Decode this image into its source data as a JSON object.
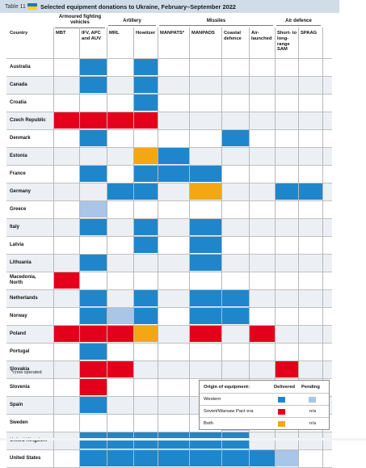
{
  "table_label": "Table 11",
  "title": "Selected equipment donations to Ukraine, February–September 2022",
  "colors": {
    "western": "#1f86cc",
    "western_pending": "#a9c5e8",
    "soviet": "#e3001b",
    "both": "#f3a712"
  },
  "groups": {
    "armoured": "Armoured fighting vehicles",
    "artillery": "Artillery",
    "missiles": "Missiles",
    "air_defence": "Air defence"
  },
  "columns": [
    "MBT",
    "IFV, APC and AUV",
    "MRL",
    "Howitzer",
    "MANPATS*",
    "MANPADS",
    "Coastal defence",
    "Air-launched",
    "Short- to long-range SAM",
    "SPAAG"
  ],
  "country_header": "Country",
  "rows": [
    {
      "country": "Australia",
      "cells": [
        "",
        "W",
        "",
        "W",
        "",
        "",
        "",
        "",
        "",
        ""
      ]
    },
    {
      "country": "Canada",
      "cells": [
        "",
        "W",
        "",
        "W",
        "",
        "",
        "",
        "",
        "",
        ""
      ]
    },
    {
      "country": "Croatia",
      "cells": [
        "",
        "",
        "",
        "W",
        "",
        "",
        "",
        "",
        "",
        ""
      ]
    },
    {
      "country": "Czech Republic",
      "cells": [
        "S",
        "S",
        "S",
        "S",
        "",
        "",
        "",
        "",
        "",
        ""
      ]
    },
    {
      "country": "Denmark",
      "cells": [
        "",
        "W",
        "",
        "",
        "",
        "",
        "W",
        "",
        "",
        ""
      ]
    },
    {
      "country": "Estonia",
      "cells": [
        "",
        "",
        "",
        "B",
        "W",
        "",
        "",
        "",
        "",
        ""
      ]
    },
    {
      "country": "France",
      "cells": [
        "",
        "W",
        "",
        "W",
        "W",
        "W",
        "",
        "",
        "",
        ""
      ]
    },
    {
      "country": "Germany",
      "cells": [
        "",
        "",
        "W",
        "W",
        "",
        "B",
        "",
        "",
        "W",
        "W"
      ]
    },
    {
      "country": "Greece",
      "cells": [
        "",
        "WP",
        "",
        "",
        "",
        "",
        "",
        "",
        "",
        ""
      ]
    },
    {
      "country": "Italy",
      "cells": [
        "",
        "W",
        "",
        "W",
        "",
        "W",
        "",
        "",
        "",
        ""
      ]
    },
    {
      "country": "Latvia",
      "cells": [
        "",
        "",
        "",
        "W",
        "",
        "W",
        "",
        "",
        "",
        ""
      ]
    },
    {
      "country": "Lithuania",
      "cells": [
        "",
        "W",
        "",
        "",
        "",
        "W",
        "",
        "",
        "",
        ""
      ]
    },
    {
      "country": "Macedonia, North",
      "cells": [
        "S",
        "",
        "",
        "",
        "",
        "",
        "",
        "",
        "",
        ""
      ]
    },
    {
      "country": "Netherlands",
      "cells": [
        "",
        "W",
        "",
        "W",
        "",
        "W",
        "W",
        "",
        "",
        ""
      ]
    },
    {
      "country": "Norway",
      "cells": [
        "",
        "W",
        "WP",
        "W",
        "",
        "W",
        "W",
        "",
        "",
        ""
      ]
    },
    {
      "country": "Poland",
      "cells": [
        "S",
        "S",
        "S",
        "B",
        "",
        "S",
        "",
        "S",
        "",
        ""
      ]
    },
    {
      "country": "Portugal",
      "cells": [
        "",
        "W",
        "",
        "",
        "",
        "",
        "",
        "",
        "",
        ""
      ]
    },
    {
      "country": "Slovakia",
      "cells": [
        "",
        "S",
        "S",
        "",
        "",
        "",
        "",
        "",
        "S",
        ""
      ]
    },
    {
      "country": "Slovenia",
      "cells": [
        "",
        "S",
        "",
        "",
        "",
        "",
        "",
        "",
        "",
        ""
      ]
    },
    {
      "country": "Spain",
      "cells": [
        "",
        "W",
        "",
        "",
        "",
        "",
        "",
        "",
        "",
        ""
      ]
    },
    {
      "country": "Sweden",
      "cells": [
        "",
        "",
        "",
        "",
        "",
        "",
        "WP",
        "",
        "",
        ""
      ]
    },
    {
      "country": "United Kingdom",
      "cells": [
        "",
        "W",
        "W",
        "W",
        "W",
        "W",
        "W",
        "",
        "",
        ""
      ]
    },
    {
      "country": "United States",
      "cells": [
        "",
        "W",
        "W",
        "W",
        "W",
        "W",
        "W",
        "W",
        "WP",
        ""
      ]
    }
  ],
  "footnote": "*crew operated",
  "legend": {
    "header": "Origin of equipment:",
    "delivered": "Delivered",
    "pending": "Pending",
    "western": "Western",
    "soviet": "Soviet/Warsaw Pact era",
    "both": "Both",
    "na": "n/a"
  }
}
